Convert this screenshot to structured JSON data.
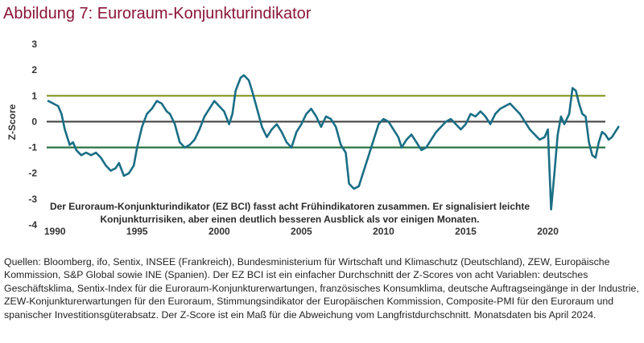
{
  "title": "Abbildung 7: Euroraum-Konjunkturindikator",
  "annotation": "Der Euroraum-Konjunkturindikator (EZ BCI) fasst acht Frühindikatoren zusammen. Er signalisiert leichte Konjunkturrisiken, aber einen deutlich besseren Ausblick als vor einigen Monaten.",
  "source_text": "Quellen: Bloomberg, ifo, Sentix, INSEE (Frankreich), Bundesministerium für Wirtschaft und Klimaschutz (Deutschland), ZEW, Europäische Kommission, S&P Global sowie INE (Spanien). Der EZ BCI ist ein einfacher Durchschnitt der Z-Scores von acht Variablen: deutsches Geschäftsklima, Sentix-Index für die Euroraum-Konjunkturerwartungen, französisches Konsumklima, deutsche Auftragseingänge in der Industrie, ZEW-Konjunkturerwartungen für den Euroraum, Stimmungsindikator der Europäischen Kommission, Composite-PMI für den Euroraum und spanischer Investitionsgüterabsatz. Der Z-Score ist ein Maß für die Abweichung vom Langfristdurchschnitt. Monatsdaten bis April 2024.",
  "colors": {
    "line": "#1a6e85",
    "upper": "#8a9a2a",
    "lower": "#1f6b3a",
    "zero": "#444444",
    "title": "#8a1538"
  },
  "chart_data": {
    "type": "line",
    "title": "Abbildung 7: Euroraum-Konjunkturindikator",
    "xlabel": "",
    "ylabel": "Z-Score",
    "xlim": [
      1989.5,
      2023.5
    ],
    "ylim": [
      -4,
      3
    ],
    "yticks": [
      "3",
      "2",
      "1",
      "0",
      "-1",
      "-2",
      "-3",
      "-4"
    ],
    "xticks": [
      "1990",
      "1995",
      "2000",
      "2005",
      "2010",
      "2015",
      "2020"
    ],
    "reference_lines": [
      1,
      0,
      -1
    ],
    "grid": false,
    "series": [
      {
        "points": [
          [
            1989.6,
            0.8
          ],
          [
            1989.9,
            0.7
          ],
          [
            1990.2,
            0.6
          ],
          [
            1990.4,
            0.3
          ],
          [
            1990.6,
            -0.3
          ],
          [
            1990.9,
            -0.9
          ],
          [
            1991.1,
            -0.8
          ],
          [
            1991.3,
            -1.1
          ],
          [
            1991.6,
            -1.3
          ],
          [
            1991.9,
            -1.2
          ],
          [
            1992.2,
            -1.3
          ],
          [
            1992.5,
            -1.2
          ],
          [
            1992.8,
            -1.4
          ],
          [
            1993.1,
            -1.7
          ],
          [
            1993.4,
            -1.9
          ],
          [
            1993.7,
            -1.8
          ],
          [
            1993.9,
            -1.6
          ],
          [
            1994.2,
            -2.1
          ],
          [
            1994.5,
            -2.0
          ],
          [
            1994.8,
            -1.7
          ],
          [
            1995.0,
            -1.0
          ],
          [
            1995.3,
            -0.2
          ],
          [
            1995.6,
            0.3
          ],
          [
            1995.9,
            0.5
          ],
          [
            1996.2,
            0.8
          ],
          [
            1996.5,
            0.7
          ],
          [
            1996.8,
            0.4
          ],
          [
            1997.0,
            0.3
          ],
          [
            1997.3,
            -0.1
          ],
          [
            1997.6,
            -0.8
          ],
          [
            1997.9,
            -1.0
          ],
          [
            1998.2,
            -0.9
          ],
          [
            1998.5,
            -0.7
          ],
          [
            1998.8,
            -0.3
          ],
          [
            1999.1,
            0.2
          ],
          [
            1999.4,
            0.5
          ],
          [
            1999.7,
            0.8
          ],
          [
            2000.0,
            0.6
          ],
          [
            2000.3,
            0.4
          ],
          [
            2000.6,
            -0.1
          ],
          [
            2000.8,
            0.3
          ],
          [
            2001.0,
            1.2
          ],
          [
            2001.3,
            1.7
          ],
          [
            2001.5,
            1.8
          ],
          [
            2001.8,
            1.6
          ],
          [
            2002.0,
            1.2
          ],
          [
            2002.3,
            0.5
          ],
          [
            2002.6,
            -0.2
          ],
          [
            2002.9,
            -0.6
          ],
          [
            2003.2,
            -0.3
          ],
          [
            2003.5,
            -0.1
          ],
          [
            2003.8,
            -0.4
          ],
          [
            2004.1,
            -0.8
          ],
          [
            2004.4,
            -1.0
          ],
          [
            2004.7,
            -0.4
          ],
          [
            2005.0,
            -0.1
          ],
          [
            2005.3,
            0.3
          ],
          [
            2005.6,
            0.5
          ],
          [
            2005.9,
            0.2
          ],
          [
            2006.2,
            -0.2
          ],
          [
            2006.5,
            0.2
          ],
          [
            2006.8,
            0.1
          ],
          [
            2007.1,
            -0.2
          ],
          [
            2007.4,
            -0.9
          ],
          [
            2007.7,
            -1.2
          ],
          [
            2007.9,
            -2.4
          ],
          [
            2008.2,
            -2.6
          ],
          [
            2008.5,
            -2.5
          ],
          [
            2008.8,
            -1.9
          ],
          [
            2009.1,
            -1.3
          ],
          [
            2009.4,
            -0.7
          ],
          [
            2009.7,
            -0.1
          ],
          [
            2010.0,
            0.1
          ],
          [
            2010.3,
            0.0
          ],
          [
            2010.6,
            -0.3
          ],
          [
            2010.9,
            -0.6
          ],
          [
            2011.1,
            -1.0
          ],
          [
            2011.4,
            -0.7
          ],
          [
            2011.7,
            -0.5
          ],
          [
            2012.0,
            -0.8
          ],
          [
            2012.3,
            -1.1
          ],
          [
            2012.6,
            -1.0
          ],
          [
            2012.9,
            -0.7
          ],
          [
            2013.2,
            -0.4
          ],
          [
            2013.5,
            -0.2
          ],
          [
            2013.8,
            0.0
          ],
          [
            2014.1,
            0.1
          ],
          [
            2014.4,
            -0.1
          ],
          [
            2014.7,
            -0.3
          ],
          [
            2015.0,
            -0.1
          ],
          [
            2015.3,
            0.3
          ],
          [
            2015.6,
            0.2
          ],
          [
            2015.9,
            0.4
          ],
          [
            2016.2,
            0.2
          ],
          [
            2016.5,
            -0.1
          ],
          [
            2016.8,
            0.3
          ],
          [
            2017.1,
            0.5
          ],
          [
            2017.4,
            0.6
          ],
          [
            2017.7,
            0.7
          ],
          [
            2018.0,
            0.5
          ],
          [
            2018.3,
            0.3
          ],
          [
            2018.6,
            0.0
          ],
          [
            2018.9,
            -0.3
          ],
          [
            2019.2,
            -0.5
          ],
          [
            2019.5,
            -0.7
          ],
          [
            2019.8,
            -0.6
          ],
          [
            2020.0,
            -0.3
          ],
          [
            2020.2,
            -3.4
          ],
          [
            2020.4,
            -2.0
          ],
          [
            2020.6,
            -0.5
          ],
          [
            2020.8,
            0.2
          ],
          [
            2021.0,
            -0.1
          ],
          [
            2021.3,
            0.3
          ],
          [
            2021.5,
            1.3
          ],
          [
            2021.7,
            1.2
          ],
          [
            2021.9,
            0.7
          ],
          [
            2022.1,
            0.3
          ],
          [
            2022.3,
            0.2
          ],
          [
            2022.5,
            -0.8
          ],
          [
            2022.7,
            -1.3
          ],
          [
            2022.9,
            -1.4
          ],
          [
            2023.1,
            -0.8
          ],
          [
            2023.3,
            -0.4
          ],
          [
            2023.5,
            -0.5
          ],
          [
            2023.7,
            -0.7
          ],
          [
            2023.9,
            -0.6
          ],
          [
            2024.1,
            -0.4
          ],
          [
            2024.3,
            -0.2
          ]
        ]
      }
    ]
  }
}
